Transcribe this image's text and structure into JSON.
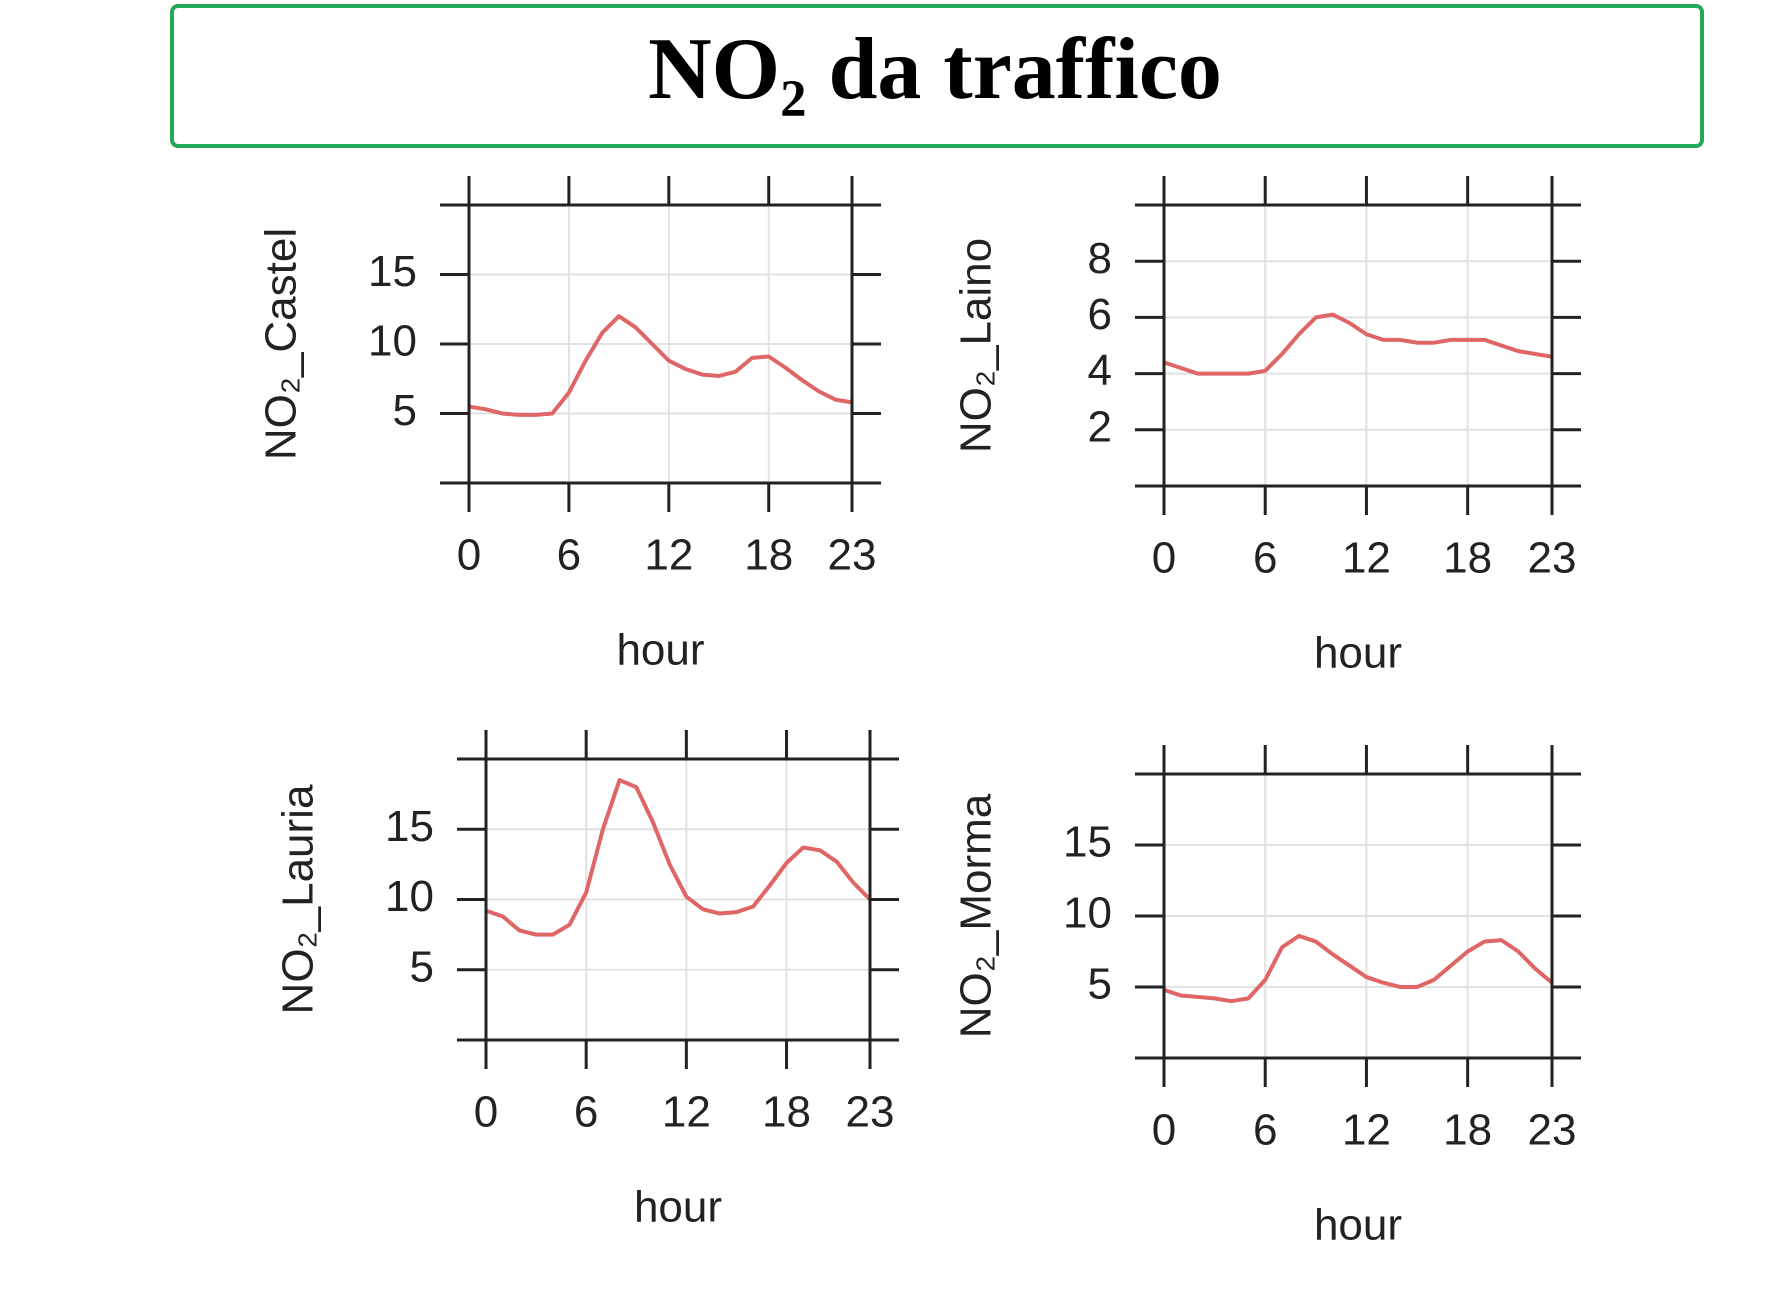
{
  "title": "NO₂ da traffico",
  "chart_data": [
    {
      "type": "line",
      "ylabel": "NO₂_Castel",
      "xlabel": "hour",
      "x": [
        0,
        1,
        2,
        3,
        4,
        5,
        6,
        7,
        8,
        9,
        10,
        11,
        12,
        13,
        14,
        15,
        16,
        17,
        18,
        19,
        20,
        21,
        22,
        23
      ],
      "series": [
        {
          "color": "#e06666",
          "values": [
            5.5,
            5.3,
            5.0,
            4.9,
            4.9,
            5.0,
            6.5,
            8.8,
            10.8,
            12.0,
            11.2,
            10.0,
            8.8,
            8.2,
            7.8,
            7.7,
            8.0,
            9.0,
            9.1,
            8.3,
            7.4,
            6.6,
            6.0,
            5.8
          ]
        }
      ],
      "xlim": [
        0,
        23
      ],
      "xticks": [
        0,
        6,
        12,
        18,
        23
      ],
      "ylim": [
        0,
        20
      ],
      "yticks": [
        5,
        10,
        15
      ],
      "grid": true
    },
    {
      "type": "line",
      "ylabel": "NO₂_Laino",
      "xlabel": "hour",
      "x": [
        0,
        1,
        2,
        3,
        4,
        5,
        6,
        7,
        8,
        9,
        10,
        11,
        12,
        13,
        14,
        15,
        16,
        17,
        18,
        19,
        20,
        21,
        22,
        23
      ],
      "series": [
        {
          "color": "#e06666",
          "values": [
            4.4,
            4.2,
            4.0,
            4.0,
            4.0,
            4.0,
            4.1,
            4.7,
            5.4,
            6.0,
            6.1,
            5.8,
            5.4,
            5.2,
            5.2,
            5.1,
            5.1,
            5.2,
            5.2,
            5.2,
            5.0,
            4.8,
            4.7,
            4.6
          ]
        }
      ],
      "xlim": [
        0,
        23
      ],
      "xticks": [
        0,
        6,
        12,
        18,
        23
      ],
      "ylim": [
        0,
        10
      ],
      "yticks": [
        2,
        4,
        6,
        8
      ],
      "grid": true
    },
    {
      "type": "line",
      "ylabel": "NO₂_Lauria",
      "xlabel": "hour",
      "x": [
        0,
        1,
        2,
        3,
        4,
        5,
        6,
        7,
        8,
        9,
        10,
        11,
        12,
        13,
        14,
        15,
        16,
        17,
        18,
        19,
        20,
        21,
        22,
        23
      ],
      "series": [
        {
          "color": "#e06666",
          "values": [
            9.2,
            8.8,
            7.8,
            7.5,
            7.5,
            8.2,
            10.5,
            15.0,
            18.5,
            18.0,
            15.5,
            12.5,
            10.2,
            9.3,
            9.0,
            9.1,
            9.5,
            11.0,
            12.6,
            13.7,
            13.5,
            12.7,
            11.2,
            10.0
          ]
        }
      ],
      "xlim": [
        0,
        23
      ],
      "xticks": [
        0,
        6,
        12,
        18,
        23
      ],
      "ylim": [
        0,
        20
      ],
      "yticks": [
        5,
        10,
        15
      ],
      "grid": true
    },
    {
      "type": "line",
      "ylabel": "NO₂_Morma",
      "xlabel": "hour",
      "x": [
        0,
        1,
        2,
        3,
        4,
        5,
        6,
        7,
        8,
        9,
        10,
        11,
        12,
        13,
        14,
        15,
        16,
        17,
        18,
        19,
        20,
        21,
        22,
        23
      ],
      "series": [
        {
          "color": "#e06666",
          "values": [
            4.8,
            4.4,
            4.3,
            4.2,
            4.0,
            4.2,
            5.5,
            7.8,
            8.6,
            8.2,
            7.3,
            6.5,
            5.7,
            5.3,
            5.0,
            5.0,
            5.5,
            6.5,
            7.5,
            8.2,
            8.3,
            7.5,
            6.3,
            5.3
          ]
        }
      ],
      "xlim": [
        0,
        23
      ],
      "xticks": [
        0,
        6,
        12,
        18,
        23
      ],
      "ylim": [
        0,
        20
      ],
      "yticks": [
        5,
        10,
        15
      ],
      "grid": true
    }
  ]
}
